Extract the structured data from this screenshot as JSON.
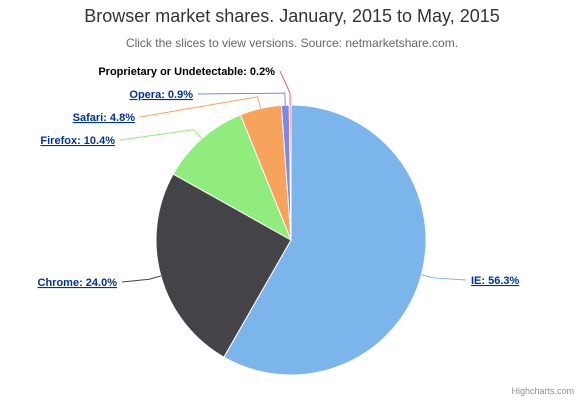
{
  "chart_data": {
    "type": "pie",
    "title": "Browser market shares. January, 2015 to May, 2015",
    "subtitle": "Click the slices to view versions. Source: netmarketshare.com.",
    "unit": "%",
    "slices": [
      {
        "name": "IE",
        "value": 56.3,
        "color": "#7cb5ec",
        "label": "IE: 56.3%",
        "link": true
      },
      {
        "name": "Chrome",
        "value": 24.0,
        "color": "#434348",
        "label": "Chrome: 24.0%",
        "link": true
      },
      {
        "name": "Firefox",
        "value": 10.4,
        "color": "#90ed7d",
        "label": "Firefox: 10.4%",
        "link": true
      },
      {
        "name": "Safari",
        "value": 4.8,
        "color": "#f7a35c",
        "label": "Safari: 4.8%",
        "link": true
      },
      {
        "name": "Opera",
        "value": 0.9,
        "color": "#8085e9",
        "label": "Opera: 0.9%",
        "link": true
      },
      {
        "name": "Proprietary or Undetectable",
        "value": 0.2,
        "color": "#f15c80",
        "label": "Proprietary or Undetectable: 0.2%",
        "link": false
      }
    ]
  },
  "credits": "Highcharts.com",
  "colors": {
    "link": "#003399",
    "label": "#000000"
  }
}
